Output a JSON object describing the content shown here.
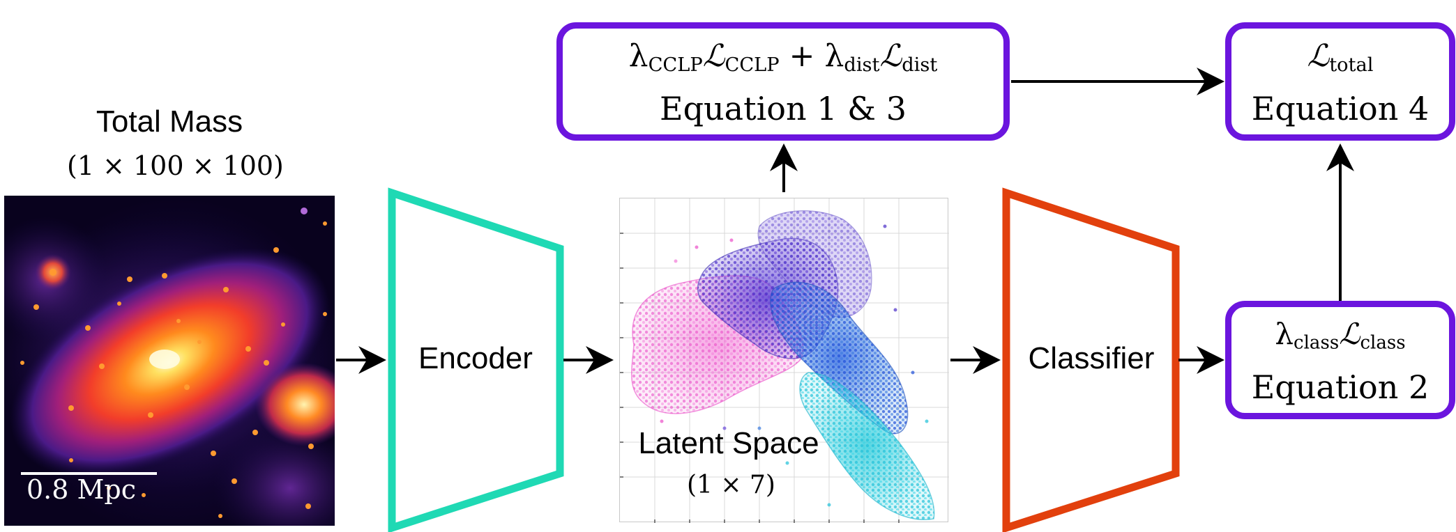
{
  "input": {
    "title": "Total Mass",
    "shape": "(1 × 100 × 100)",
    "scale_bar_label": "0.8 Mpc"
  },
  "encoder": {
    "label": "Encoder",
    "color": "#1fd9b4"
  },
  "latent": {
    "label": "Latent Space",
    "shape": "(1 × 7)",
    "cluster_colors": [
      "#f062d0",
      "#5a3fd6",
      "#2a5ee0",
      "#2ccfe0"
    ]
  },
  "classifier": {
    "label": "Classifier",
    "color": "#e2400d"
  },
  "equations": {
    "box_color": "#6b15de",
    "cclp_dist": {
      "lambda1": "λ",
      "sub1": "CCLP",
      "loss1": "ℒ",
      "sub1b": "CCLP",
      "plus": " + ",
      "lambda2": "λ",
      "sub2": "dist",
      "loss2": "ℒ",
      "sub2b": "dist",
      "caption": "Equation 1 & 3"
    },
    "total": {
      "loss": "ℒ",
      "sub": "total",
      "caption": "Equation 4"
    },
    "class": {
      "lambda": "λ",
      "sub": "class",
      "loss": "ℒ",
      "subb": "class",
      "caption": "Equation 2"
    }
  }
}
